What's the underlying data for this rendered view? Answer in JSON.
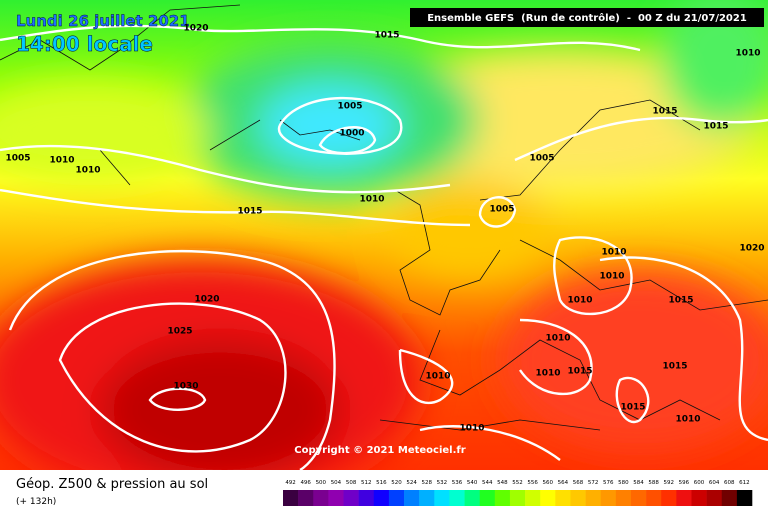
{
  "header": {
    "date": "Lundi 26 juillet 2021",
    "time": "14:00 locale",
    "run": "Ensemble GEFS  (Run de contrôle)  -  00 Z du 21/07/2021"
  },
  "isobar_labels": [
    "1020",
    "1015",
    "1005",
    "1000",
    "1005",
    "1010",
    "1010",
    "1010",
    "1015",
    "1005",
    "1015",
    "1015",
    "1010",
    "1005",
    "1010",
    "1010",
    "1010",
    "1015",
    "1020",
    "1020",
    "1025",
    "1030",
    "1010",
    "1010",
    "1015",
    "1015",
    "1010",
    "1015",
    "1010",
    "1010"
  ],
  "copyright": "Copyright © 2021 Meteociel.fr",
  "footer": {
    "title": "Géop. Z500 & pression au sol",
    "lead": "(+ 132h)"
  },
  "color_scale": {
    "labels": [
      "492",
      "496",
      "500",
      "504",
      "508",
      "512",
      "516",
      "520",
      "524",
      "528",
      "532",
      "536",
      "540",
      "544",
      "548",
      "552",
      "556",
      "560",
      "564",
      "568",
      "572",
      "576",
      "580",
      "584",
      "588",
      "592",
      "596",
      "600",
      "604",
      "608",
      "612"
    ],
    "colors": [
      "#3a0040",
      "#5a0068",
      "#7a0090",
      "#9000b0",
      "#7000c8",
      "#4000e0",
      "#1000ff",
      "#0040ff",
      "#0080ff",
      "#00b0ff",
      "#00e0ff",
      "#00ffd0",
      "#00ff80",
      "#20ff20",
      "#60ff00",
      "#a0ff00",
      "#d0ff00",
      "#ffff00",
      "#ffe000",
      "#ffc800",
      "#ffb000",
      "#ff9800",
      "#ff8000",
      "#ff6800",
      "#ff5000",
      "#ff3000",
      "#ee1010",
      "#cc0000",
      "#aa0000",
      "#700000",
      "#000000"
    ]
  }
}
